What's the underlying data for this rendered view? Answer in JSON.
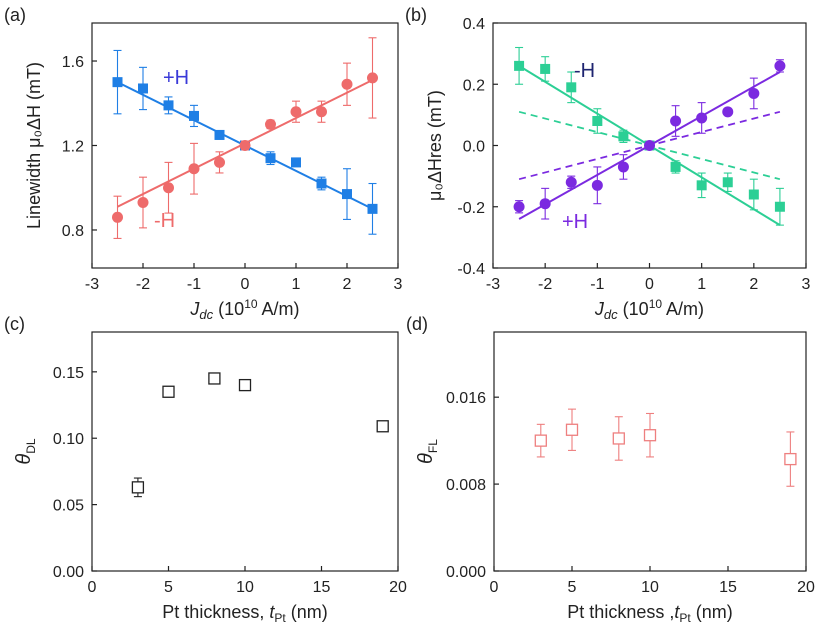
{
  "figure": {
    "colors": {
      "blue": "#1f7fe5",
      "red": "#ee6b6b",
      "green": "#2ccf95",
      "purple": "#7b2ae0",
      "plusH_text_a": "#3a3ad8",
      "minusH_text_b": "#1e2470",
      "plusH_text_b": "#7b2ae0",
      "black": "#222222",
      "pink": "#ee7f7f"
    }
  },
  "chart_data": [
    {
      "id": "a",
      "panel_label": "(a)",
      "type": "scatter",
      "xlabel_main": "J",
      "xlabel_sub": "dc",
      "xlabel_rest": " (10",
      "xlabel_exp": "10",
      "xlabel_units": " A/m)",
      "ylabel": "Linewidth μ₀ΔH (mT)",
      "xlim": [
        -3,
        3
      ],
      "ylim": [
        0.62,
        1.78
      ],
      "xticks": [
        "-3",
        "-2",
        "-1",
        "0",
        "1",
        "2",
        "3"
      ],
      "xtick_values": [
        -3,
        -2,
        -1,
        0,
        1,
        2,
        3
      ],
      "yticks": [
        "0.8",
        "1.2",
        "1.6"
      ],
      "ytick_values": [
        0.8,
        1.2,
        1.6
      ],
      "series": [
        {
          "name": "+H",
          "color": "#1f7fe5",
          "marker": "square",
          "x": [
            -2.5,
            -2,
            -1.5,
            -1,
            -0.5,
            0,
            0.5,
            1,
            1.5,
            2,
            2.5
          ],
          "y": [
            1.5,
            1.47,
            1.39,
            1.34,
            1.25,
            1.2,
            1.14,
            1.12,
            1.02,
            0.97,
            0.9
          ],
          "err": [
            0.15,
            0.1,
            0.04,
            0.05,
            0.02,
            0.02,
            0.03,
            0.02,
            0.03,
            0.12,
            0.12
          ],
          "fit": [
            [
              -2.5,
              1.5
            ],
            [
              2.5,
              0.9
            ]
          ],
          "annotation": "+H"
        },
        {
          "name": "-H",
          "color": "#ee6b6b",
          "marker": "circle",
          "x": [
            -2.5,
            -2,
            -1.5,
            -1,
            -0.5,
            0,
            0.5,
            1,
            1.5,
            2,
            2.5
          ],
          "y": [
            0.86,
            0.93,
            1.0,
            1.09,
            1.12,
            1.2,
            1.3,
            1.36,
            1.36,
            1.49,
            1.52
          ],
          "err": [
            0.1,
            0.12,
            0.12,
            0.12,
            0.05,
            0.02,
            0.02,
            0.05,
            0.05,
            0.1,
            0.19
          ],
          "fit": [
            [
              -2.5,
              0.91
            ],
            [
              2.5,
              1.51
            ]
          ],
          "annotation": "-H"
        }
      ]
    },
    {
      "id": "b",
      "panel_label": "(b)",
      "type": "scatter",
      "xlabel_main": "J",
      "xlabel_sub": "dc",
      "xlabel_rest": " (10",
      "xlabel_exp": "10",
      "xlabel_units": " A/m)",
      "ylabel": "μ₀ΔHres (mT)",
      "xlim": [
        -3,
        3
      ],
      "ylim": [
        -0.4,
        0.4
      ],
      "xticks": [
        "-3",
        "-2",
        "-1",
        "0",
        "1",
        "2",
        "3"
      ],
      "xtick_values": [
        -3,
        -2,
        -1,
        0,
        1,
        2,
        3
      ],
      "yticks": [
        "-0.4",
        "-0.2",
        "0.0",
        "0.2",
        "0.4"
      ],
      "ytick_values": [
        -0.4,
        -0.2,
        0.0,
        0.2,
        0.4
      ],
      "series": [
        {
          "name": "-H",
          "color": "#2ccf95",
          "marker": "square",
          "x": [
            -2.5,
            -2,
            -1.5,
            -1,
            -0.5,
            0,
            0.5,
            1,
            1.5,
            2,
            2.5
          ],
          "y": [
            0.26,
            0.25,
            0.19,
            0.08,
            0.03,
            0.0,
            -0.07,
            -0.13,
            -0.12,
            -0.16,
            -0.2
          ],
          "err": [
            0.06,
            0.04,
            0.05,
            0.04,
            0.02,
            0.01,
            0.02,
            0.04,
            0.03,
            0.05,
            0.06
          ],
          "fit": [
            [
              -2.5,
              0.26
            ],
            [
              2.5,
              -0.26
            ]
          ],
          "dashed": [
            [
              -2.5,
              0.11
            ],
            [
              2.5,
              -0.11
            ]
          ],
          "annotation": "-H"
        },
        {
          "name": "+H",
          "color": "#7b2ae0",
          "marker": "circle",
          "x": [
            -2.5,
            -2,
            -1.5,
            -1,
            -0.5,
            0,
            0.5,
            1,
            1.5,
            2,
            2.5
          ],
          "y": [
            -0.2,
            -0.19,
            -0.12,
            -0.13,
            -0.07,
            0.0,
            0.08,
            0.09,
            0.11,
            0.17,
            0.26
          ],
          "err": [
            0.02,
            0.05,
            0.02,
            0.06,
            0.04,
            0.01,
            0.05,
            0.05,
            0.01,
            0.05,
            0.02
          ],
          "fit": [
            [
              -2.5,
              -0.24
            ],
            [
              2.5,
              0.24
            ]
          ],
          "dashed": [
            [
              -2.5,
              -0.11
            ],
            [
              2.5,
              0.11
            ]
          ],
          "annotation": "+H"
        }
      ]
    },
    {
      "id": "c",
      "panel_label": "(c)",
      "type": "scatter",
      "xlabel_main": "Pt thickness, ",
      "xlabel_italic": "t",
      "xlabel_sub": "Pt",
      "xlabel_units": " (nm)",
      "ylabel_main": "θ",
      "ylabel_sub": "DL",
      "xlim": [
        0,
        20
      ],
      "ylim": [
        0,
        0.18
      ],
      "xticks": [
        "0",
        "5",
        "10",
        "15",
        "20"
      ],
      "xtick_values": [
        0,
        5,
        10,
        15,
        20
      ],
      "yticks": [
        "0.00",
        "0.05",
        "0.10",
        "0.15"
      ],
      "ytick_values": [
        0,
        0.05,
        0.1,
        0.15
      ],
      "series": [
        {
          "name": "theta_DL",
          "color": "#222222",
          "marker": "open-square",
          "x": [
            3,
            5,
            8,
            10,
            19
          ],
          "y": [
            0.063,
            0.135,
            0.145,
            0.14,
            0.109
          ],
          "err": [
            0.007,
            0.004,
            0.002,
            0.004,
            0.003
          ]
        }
      ]
    },
    {
      "id": "d",
      "panel_label": "(d)",
      "type": "scatter",
      "xlabel_main": "Pt thickness ,",
      "xlabel_italic": "t",
      "xlabel_sub": "Pt",
      "xlabel_units": " (nm)",
      "ylabel_main": "θ",
      "ylabel_sub": "FL",
      "xlim": [
        0,
        20
      ],
      "ylim": [
        0,
        0.022
      ],
      "xticks": [
        "0",
        "5",
        "10",
        "15",
        "20"
      ],
      "xtick_values": [
        0,
        5,
        10,
        15,
        20
      ],
      "yticks": [
        "0.000",
        "0.008",
        "0.016"
      ],
      "ytick_values": [
        0,
        0.008,
        0.016
      ],
      "series": [
        {
          "name": "theta_FL",
          "color": "#ee7f7f",
          "marker": "open-square",
          "x": [
            3,
            5,
            8,
            10,
            19
          ],
          "y": [
            0.012,
            0.013,
            0.0122,
            0.0125,
            0.0103
          ],
          "err": [
            0.0015,
            0.0019,
            0.002,
            0.002,
            0.0025
          ]
        }
      ]
    }
  ]
}
